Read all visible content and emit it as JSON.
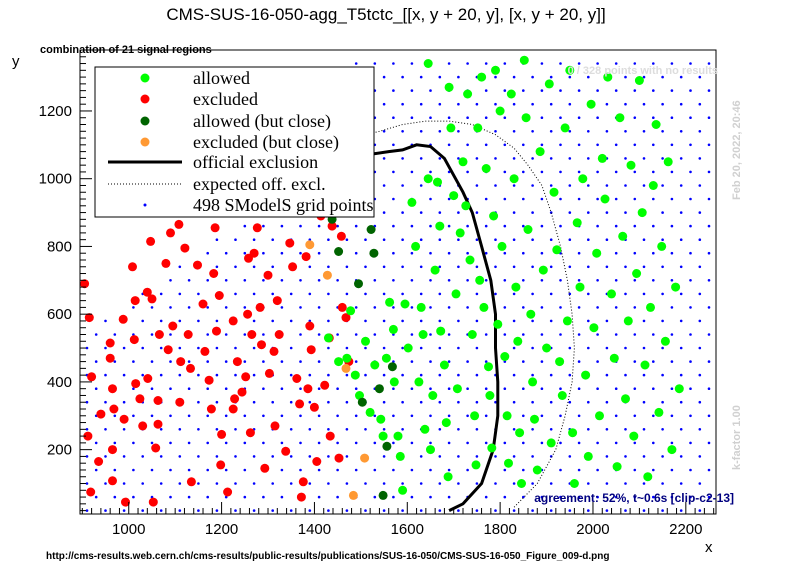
{
  "chart_data": {
    "type": "scatter",
    "title": "CMS-SUS-16-050-agg_T5tctc_[[x, y + 20, y], [x, y + 20, y]]",
    "subtitle": "combination of 21 signal regions",
    "xlabel": "x",
    "ylabel": "y",
    "xlim": [
      895,
      2265
    ],
    "ylim": [
      10,
      1380
    ],
    "xticks": [
      "1000",
      "1200",
      "1400",
      "1600",
      "1800",
      "2000",
      "2200"
    ],
    "yticks": [
      "200",
      "400",
      "600",
      "800",
      "1000",
      "1200"
    ],
    "grid": false,
    "legend_position": "top-left",
    "legend": [
      {
        "label": "allowed",
        "kind": "marker",
        "color": "#00ff00"
      },
      {
        "label": "excluded",
        "kind": "marker",
        "color": "#ff0000"
      },
      {
        "label": "allowed (but close)",
        "kind": "marker",
        "color": "#006400"
      },
      {
        "label": "excluded (but close)",
        "kind": "marker",
        "color": "#ff9933"
      },
      {
        "label": "official exclusion",
        "kind": "line",
        "color": "#000000"
      },
      {
        "label": "expected off. excl.",
        "kind": "dotted",
        "color": "#000000"
      },
      {
        "label": "498 SModelS grid points",
        "kind": "gridpoint",
        "color": "#0000ff"
      }
    ],
    "annotations": {
      "no_results": "0 / 328 points with no results",
      "timestamp": "Feb 20, 2022, 20:46",
      "kfactor": "k-factor 1.00",
      "agreement": "agreement: 52%, t~0.6s [clip-c2-13]",
      "source_url": "http://cms-results.web.cern.ch/cms-results/public-results/publications/SUS-16-050/CMS-SUS-16-050_Figure_009-d.png"
    },
    "series": [
      {
        "name": "excluded",
        "color": "#ff0000",
        "points": [
          [
            905,
            690
          ],
          [
            915,
            590
          ],
          [
            920,
            415
          ],
          [
            912,
            240
          ],
          [
            918,
            75
          ],
          [
            935,
            165
          ],
          [
            940,
            305
          ],
          [
            960,
            515
          ],
          [
            960,
            470
          ],
          [
            965,
            380
          ],
          [
            968,
            320
          ],
          [
            965,
            200
          ],
          [
            965,
            108
          ],
          [
            988,
            585
          ],
          [
            990,
            290
          ],
          [
            993,
            45
          ],
          [
            1008,
            740
          ],
          [
            1012,
            525
          ],
          [
            1014,
            640
          ],
          [
            1015,
            395
          ],
          [
            1024,
            350
          ],
          [
            1030,
            270
          ],
          [
            1040,
            665
          ],
          [
            1041,
            410
          ],
          [
            1047,
            815
          ],
          [
            1050,
            645
          ],
          [
            1053,
            45
          ],
          [
            1058,
            205
          ],
          [
            1063,
            345
          ],
          [
            1063,
            275
          ],
          [
            1066,
            540
          ],
          [
            1080,
            750
          ],
          [
            1085,
            495
          ],
          [
            1090,
            840
          ],
          [
            1095,
            565
          ],
          [
            1108,
            865
          ],
          [
            1110,
            340
          ],
          [
            1112,
            460
          ],
          [
            1121,
            795
          ],
          [
            1128,
            540
          ],
          [
            1133,
            440
          ],
          [
            1135,
            105
          ],
          [
            1148,
            745
          ],
          [
            1160,
            630
          ],
          [
            1164,
            490
          ],
          [
            1173,
            405
          ],
          [
            1178,
            320
          ],
          [
            1183,
            720
          ],
          [
            1186,
            855
          ],
          [
            1189,
            550
          ],
          [
            1195,
            655
          ],
          [
            1198,
            155
          ],
          [
            1200,
            245
          ],
          [
            1213,
            75
          ],
          [
            1216,
            930
          ],
          [
            1225,
            320
          ],
          [
            1225,
            580
          ],
          [
            1228,
            350
          ],
          [
            1234,
            460
          ],
          [
            1244,
            370
          ],
          [
            1252,
            415
          ],
          [
            1256,
            600
          ],
          [
            1258,
            765
          ],
          [
            1262,
            250
          ],
          [
            1265,
            540
          ],
          [
            1270,
            780
          ],
          [
            1277,
            855
          ],
          [
            1283,
            620
          ],
          [
            1286,
            510
          ],
          [
            1293,
            145
          ],
          [
            1300,
            715
          ],
          [
            1303,
            425
          ],
          [
            1313,
            490
          ],
          [
            1315,
            270
          ],
          [
            1320,
            640
          ],
          [
            1324,
            540
          ],
          [
            1338,
            195
          ],
          [
            1342,
            925
          ],
          [
            1347,
            810
          ],
          [
            1353,
            740
          ],
          [
            1362,
            410
          ],
          [
            1368,
            335
          ],
          [
            1372,
            60
          ],
          [
            1376,
            105
          ],
          [
            1382,
            770
          ],
          [
            1386,
            380
          ],
          [
            1390,
            565
          ],
          [
            1393,
            495
          ],
          [
            1400,
            325
          ],
          [
            1405,
            165
          ],
          [
            1414,
            890
          ],
          [
            1422,
            390
          ],
          [
            1432,
            530
          ],
          [
            1434,
            240
          ],
          [
            1438,
            860
          ],
          [
            1453,
            175
          ],
          [
            1458,
            830
          ],
          [
            1460,
            620
          ],
          [
            1468,
            590
          ],
          [
            1474,
            460
          ]
        ]
      },
      {
        "name": "allowed",
        "color": "#00ff00",
        "points": [
          [
            1430,
            530
          ],
          [
            1452,
            460
          ],
          [
            1470,
            470
          ],
          [
            1478,
            610
          ],
          [
            1488,
            420
          ],
          [
            1497,
            360
          ],
          [
            1510,
            520
          ],
          [
            1520,
            310
          ],
          [
            1530,
            450
          ],
          [
            1543,
            290
          ],
          [
            1548,
            240
          ],
          [
            1555,
            470
          ],
          [
            1562,
            635
          ],
          [
            1570,
            555
          ],
          [
            1572,
            400
          ],
          [
            1580,
            240
          ],
          [
            1585,
            180
          ],
          [
            1590,
            80
          ],
          [
            1595,
            630
          ],
          [
            1602,
            500
          ],
          [
            1610,
            930
          ],
          [
            1618,
            800
          ],
          [
            1625,
            400
          ],
          [
            1630,
            620
          ],
          [
            1634,
            540
          ],
          [
            1638,
            260
          ],
          [
            1645,
            1340
          ],
          [
            1645,
            1000
          ],
          [
            1650,
            200
          ],
          [
            1655,
            360
          ],
          [
            1660,
            730
          ],
          [
            1665,
            990
          ],
          [
            1670,
            860
          ],
          [
            1672,
            550
          ],
          [
            1680,
            450
          ],
          [
            1684,
            280
          ],
          [
            1688,
            120
          ],
          [
            1690,
            1270
          ],
          [
            1694,
            1150
          ],
          [
            1700,
            950
          ],
          [
            1705,
            660
          ],
          [
            1708,
            380
          ],
          [
            1714,
            840
          ],
          [
            1720,
            1050
          ],
          [
            1726,
            920
          ],
          [
            1730,
            1250
          ],
          [
            1735,
            760
          ],
          [
            1740,
            540
          ],
          [
            1745,
            300
          ],
          [
            1748,
            155
          ],
          [
            1752,
            1150
          ],
          [
            1756,
            700
          ],
          [
            1760,
            1300
          ],
          [
            1765,
            620
          ],
          [
            1770,
            1030
          ],
          [
            1775,
            445
          ],
          [
            1778,
            360
          ],
          [
            1782,
            205
          ],
          [
            1786,
            890
          ],
          [
            1790,
            1320
          ],
          [
            1795,
            570
          ],
          [
            1800,
            1200
          ],
          [
            1804,
            800
          ],
          [
            1810,
            475
          ],
          [
            1815,
            300
          ],
          [
            1818,
            160
          ],
          [
            1824,
            1250
          ],
          [
            1830,
            1000
          ],
          [
            1834,
            680
          ],
          [
            1838,
            520
          ],
          [
            1842,
            250
          ],
          [
            1846,
            100
          ],
          [
            1852,
            1350
          ],
          [
            1856,
            1180
          ],
          [
            1860,
            850
          ],
          [
            1866,
            600
          ],
          [
            1870,
            400
          ],
          [
            1874,
            290
          ],
          [
            1880,
            140
          ],
          [
            1886,
            1080
          ],
          [
            1893,
            730
          ],
          [
            1900,
            500
          ],
          [
            1906,
            1280
          ],
          [
            1910,
            220
          ],
          [
            1916,
            960
          ],
          [
            1922,
            790
          ],
          [
            1928,
            460
          ],
          [
            1934,
            360
          ],
          [
            1940,
            1150
          ],
          [
            1945,
            580
          ],
          [
            1950,
            1320
          ],
          [
            1956,
            250
          ],
          [
            1960,
            100
          ],
          [
            1966,
            870
          ],
          [
            1972,
            680
          ],
          [
            1978,
            1000
          ],
          [
            1984,
            420
          ],
          [
            1990,
            180
          ],
          [
            1996,
            1220
          ],
          [
            2002,
            560
          ],
          [
            2008,
            780
          ],
          [
            2014,
            300
          ],
          [
            2020,
            1060
          ],
          [
            2026,
            940
          ],
          [
            2032,
            1300
          ],
          [
            2040,
            660
          ],
          [
            2046,
            470
          ],
          [
            2052,
            150
          ],
          [
            2058,
            1180
          ],
          [
            2064,
            830
          ],
          [
            2070,
            350
          ],
          [
            2076,
            580
          ],
          [
            2082,
            1040
          ],
          [
            2088,
            240
          ],
          [
            2094,
            720
          ],
          [
            2100,
            1290
          ],
          [
            2106,
            900
          ],
          [
            2112,
            450
          ],
          [
            2118,
            120
          ],
          [
            2124,
            620
          ],
          [
            2130,
            980
          ],
          [
            2136,
            1160
          ],
          [
            2142,
            310
          ],
          [
            2148,
            800
          ],
          [
            2156,
            520
          ],
          [
            2162,
            1050
          ],
          [
            2170,
            200
          ],
          [
            2178,
            680
          ],
          [
            2186,
            380
          ]
        ]
      },
      {
        "name": "allowed (but close)",
        "color": "#006400",
        "points": [
          [
            1438,
            880
          ],
          [
            1452,
            785
          ],
          [
            1495,
            690
          ],
          [
            1503,
            340
          ],
          [
            1528,
            780
          ],
          [
            1540,
            380
          ],
          [
            1556,
            210
          ],
          [
            1522,
            850
          ],
          [
            1548,
            65
          ],
          [
            1568,
            445
          ]
        ]
      },
      {
        "name": "excluded (but close)",
        "color": "#ff9933",
        "points": [
          [
            1390,
            805
          ],
          [
            1428,
            715
          ],
          [
            1468,
            440
          ],
          [
            1484,
            65
          ],
          [
            1508,
            175
          ]
        ]
      }
    ],
    "official_exclusion": [
      [
        1690,
        20
      ],
      [
        1720,
        40
      ],
      [
        1760,
        100
      ],
      [
        1785,
        200
      ],
      [
        1795,
        300
      ],
      [
        1795,
        400
      ],
      [
        1790,
        500
      ],
      [
        1790,
        600
      ],
      [
        1780,
        700
      ],
      [
        1760,
        800
      ],
      [
        1740,
        900
      ],
      [
        1720,
        960
      ],
      [
        1700,
        1010
      ],
      [
        1680,
        1060
      ],
      [
        1650,
        1095
      ],
      [
        1620,
        1100
      ],
      [
        1590,
        1085
      ],
      [
        1560,
        1080
      ],
      [
        1510,
        1070
      ],
      [
        1450,
        1040
      ],
      [
        1380,
        1000
      ],
      [
        1330,
        970
      ],
      [
        1290,
        940
      ]
    ],
    "expected_exclusion": [
      [
        1830,
        30
      ],
      [
        1880,
        100
      ],
      [
        1920,
        200
      ],
      [
        1940,
        300
      ],
      [
        1955,
        400
      ],
      [
        1960,
        500
      ],
      [
        1955,
        600
      ],
      [
        1945,
        700
      ],
      [
        1930,
        800
      ],
      [
        1910,
        900
      ],
      [
        1890,
        980
      ],
      [
        1860,
        1040
      ],
      [
        1830,
        1090
      ],
      [
        1790,
        1130
      ],
      [
        1740,
        1160
      ],
      [
        1690,
        1170
      ],
      [
        1640,
        1170
      ],
      [
        1590,
        1160
      ],
      [
        1540,
        1140
      ],
      [
        1480,
        1120
      ],
      [
        1420,
        1090
      ],
      [
        1370,
        1050
      ],
      [
        1330,
        1010
      ],
      [
        1290,
        970
      ]
    ]
  }
}
